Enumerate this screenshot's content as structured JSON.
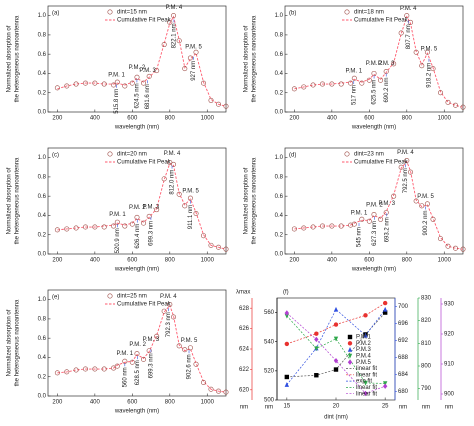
{
  "chart_data": [
    {
      "type": "line",
      "panel_label": "(a)",
      "xlabel": "wavelength (nm)",
      "ylabel": [
        "Normalized absorption of",
        "the heterogeneous nanoantenna"
      ],
      "x": [
        200,
        250,
        300,
        350,
        400,
        450,
        500,
        520,
        560,
        600,
        625,
        660,
        690,
        730,
        770,
        800,
        820,
        850,
        880,
        910,
        940,
        980,
        1020,
        1060,
        1100
      ],
      "series": [
        {
          "name": "dint=15 nm",
          "color": "#9c4a44",
          "values": [
            0.25,
            0.27,
            0.29,
            0.3,
            0.3,
            0.29,
            0.28,
            0.31,
            0.27,
            0.3,
            0.36,
            0.3,
            0.37,
            0.43,
            0.7,
            0.93,
            1.0,
            0.74,
            0.45,
            0.56,
            0.62,
            0.3,
            0.12,
            0.08,
            0.06
          ]
        },
        {
          "name": "Cumulative Fit Peak",
          "color": "#ff5a6e",
          "values": [
            0.24,
            0.27,
            0.29,
            0.3,
            0.3,
            0.29,
            0.29,
            0.3,
            0.28,
            0.31,
            0.35,
            0.31,
            0.36,
            0.44,
            0.71,
            0.92,
            0.99,
            0.75,
            0.46,
            0.55,
            0.61,
            0.31,
            0.13,
            0.08,
            0.06
          ]
        }
      ],
      "xlim": [
        150,
        1100
      ],
      "xticks": [
        200,
        400,
        600,
        800,
        1000
      ],
      "ylim": [
        0,
        1.1
      ],
      "yticks": [
        {
          "value": 0,
          "label": "0.0"
        },
        0.2,
        0.4,
        0.6,
        0.8,
        {
          "value": 1,
          "label": "1.0"
        }
      ],
      "peaks": [
        {
          "name": "P.M. 1",
          "x": 515.8,
          "label": "515.8 nm"
        },
        {
          "name": "P.M. 2",
          "x": 624.5,
          "label": "624.5 nm"
        },
        {
          "name": "P.M. 3",
          "x": 681.6,
          "label": "681.6 nm"
        },
        {
          "name": "P.M. 4",
          "x": 822.1,
          "label": "822.1 nm"
        },
        {
          "name": "P.M. 5",
          "x": 927,
          "label": "927 nm"
        }
      ]
    },
    {
      "type": "line",
      "panel_label": "(b)",
      "xlabel": "wavelength (nm)",
      "ylabel": [
        "Normalized absorption of",
        "the heterogeneous nanoantenna"
      ],
      "x": [
        200,
        250,
        300,
        350,
        400,
        450,
        500,
        520,
        560,
        600,
        625,
        660,
        690,
        730,
        770,
        800,
        820,
        850,
        880,
        910,
        940,
        980,
        1020,
        1060,
        1100
      ],
      "series": [
        {
          "name": "dint=18 nm",
          "color": "#9c4a44",
          "values": [
            0.24,
            0.26,
            0.28,
            0.29,
            0.29,
            0.29,
            0.3,
            0.35,
            0.3,
            0.33,
            0.4,
            0.33,
            0.42,
            0.5,
            0.82,
            1.0,
            0.93,
            0.62,
            0.48,
            0.62,
            0.45,
            0.2,
            0.1,
            0.07,
            0.05
          ]
        },
        {
          "name": "Cumulative Fit Peak",
          "color": "#ff5a6e",
          "values": [
            0.24,
            0.26,
            0.28,
            0.29,
            0.29,
            0.3,
            0.31,
            0.34,
            0.31,
            0.34,
            0.39,
            0.34,
            0.41,
            0.51,
            0.81,
            0.99,
            0.92,
            0.63,
            0.49,
            0.61,
            0.46,
            0.21,
            0.1,
            0.07,
            0.05
          ]
        }
      ],
      "xlim": [
        150,
        1100
      ],
      "xticks": [
        200,
        400,
        600,
        800,
        1000
      ],
      "ylim": [
        0,
        1.1
      ],
      "yticks": [
        {
          "value": 0,
          "label": "0.0"
        },
        0.2,
        0.4,
        0.6,
        0.8,
        {
          "value": 1,
          "label": "1.0"
        }
      ],
      "peaks": [
        {
          "name": "P.M. 1",
          "x": 517,
          "label": "517 nm"
        },
        {
          "name": "P.M. 2",
          "x": 625.5,
          "label": "625.5 nm"
        },
        {
          "name": "P.M. 3",
          "x": 690.2,
          "label": "690.2 nm"
        },
        {
          "name": "P.M. 4",
          "x": 807.7,
          "label": "807.7 nm"
        },
        {
          "name": "P.M. 5",
          "x": 918.2,
          "label": "918.2 nm"
        }
      ]
    },
    {
      "type": "line",
      "panel_label": "(c)",
      "xlabel": "wavelength (nm)",
      "ylabel": [
        "Normalized absorption of",
        "the heterogeneous nanoantenna"
      ],
      "x": [
        200,
        250,
        300,
        350,
        400,
        450,
        500,
        520,
        560,
        600,
        625,
        660,
        690,
        730,
        770,
        800,
        820,
        850,
        880,
        910,
        940,
        980,
        1020,
        1060,
        1100
      ],
      "series": [
        {
          "name": "dint=20 nm",
          "color": "#9c4a44",
          "values": [
            0.25,
            0.26,
            0.27,
            0.28,
            0.28,
            0.28,
            0.29,
            0.33,
            0.29,
            0.31,
            0.38,
            0.32,
            0.39,
            0.46,
            0.78,
            0.95,
            0.93,
            0.62,
            0.5,
            0.58,
            0.42,
            0.19,
            0.09,
            0.07,
            0.05
          ]
        },
        {
          "name": "Cumulative Fit Peak",
          "color": "#ff5a6e",
          "values": [
            0.25,
            0.26,
            0.27,
            0.28,
            0.28,
            0.29,
            0.3,
            0.32,
            0.3,
            0.32,
            0.37,
            0.33,
            0.38,
            0.47,
            0.77,
            0.94,
            0.92,
            0.63,
            0.51,
            0.57,
            0.43,
            0.2,
            0.09,
            0.07,
            0.05
          ]
        }
      ],
      "xlim": [
        150,
        1100
      ],
      "xticks": [
        200,
        400,
        600,
        800,
        1000
      ],
      "ylim": [
        0,
        1.1
      ],
      "yticks": [
        {
          "value": 0,
          "label": "0.0"
        },
        0.2,
        0.4,
        0.6,
        0.8,
        {
          "value": 1,
          "label": "1.0"
        }
      ],
      "peaks": [
        {
          "name": "P.M. 1",
          "x": 520.9,
          "label": "520.9 nm"
        },
        {
          "name": "P.M. 2",
          "x": 626.4,
          "label": "626.4 nm"
        },
        {
          "name": "P.M. 3",
          "x": 699.3,
          "label": "699.3 nm"
        },
        {
          "name": "P.M. 4",
          "x": 812.0,
          "label": "812.0 nm"
        },
        {
          "name": "P.M. 5",
          "x": 911.1,
          "label": "911.1 nm"
        }
      ]
    },
    {
      "type": "line",
      "panel_label": "(d)",
      "xlabel": "wavelength (nm)",
      "ylabel": [
        "Normalized absorption of",
        "the heterogeneous nanoantenna"
      ],
      "x": [
        200,
        250,
        300,
        350,
        400,
        450,
        500,
        520,
        560,
        600,
        625,
        660,
        690,
        730,
        770,
        800,
        820,
        850,
        880,
        910,
        940,
        980,
        1020,
        1060,
        1100
      ],
      "series": [
        {
          "name": "dint=23 nm",
          "color": "#9c4a44",
          "values": [
            0.26,
            0.27,
            0.28,
            0.29,
            0.29,
            0.29,
            0.3,
            0.31,
            0.36,
            0.34,
            0.41,
            0.36,
            0.43,
            0.6,
            0.9,
            0.97,
            0.85,
            0.55,
            0.5,
            0.52,
            0.36,
            0.16,
            0.08,
            0.06,
            0.05
          ]
        },
        {
          "name": "Cumulative Fit Peak",
          "color": "#ff5a6e",
          "values": [
            0.26,
            0.27,
            0.28,
            0.29,
            0.29,
            0.29,
            0.3,
            0.32,
            0.35,
            0.35,
            0.4,
            0.37,
            0.44,
            0.61,
            0.89,
            0.96,
            0.86,
            0.56,
            0.49,
            0.51,
            0.37,
            0.17,
            0.08,
            0.06,
            0.05
          ]
        }
      ],
      "xlim": [
        150,
        1100
      ],
      "xticks": [
        200,
        400,
        600,
        800,
        1000
      ],
      "ylim": [
        0,
        1.1
      ],
      "yticks": [
        {
          "value": 0,
          "label": "0.0"
        },
        0.2,
        0.4,
        0.6,
        0.8,
        {
          "value": 1,
          "label": "1.0"
        }
      ],
      "peaks": [
        {
          "name": "P.M. 1",
          "x": 545,
          "label": "545 nm"
        },
        {
          "name": "P.M. 2",
          "x": 627.3,
          "label": "627.3 nm"
        },
        {
          "name": "P.M. 3",
          "x": 693.2,
          "label": "693.2 nm"
        },
        {
          "name": "P.M. 4",
          "x": 792.5,
          "label": "792.5 nm"
        },
        {
          "name": "P.M. 5",
          "x": 900.2,
          "label": "900.2 nm"
        }
      ]
    },
    {
      "type": "line",
      "panel_label": "(e)",
      "xlabel": "wavelength (nm)",
      "ylabel": [
        "Normalized absorption of",
        "the heterogeneous nanoantenna"
      ],
      "x": [
        200,
        250,
        300,
        350,
        400,
        450,
        500,
        520,
        560,
        600,
        625,
        660,
        690,
        730,
        770,
        800,
        820,
        850,
        880,
        910,
        940,
        980,
        1020,
        1060,
        1100
      ],
      "series": [
        {
          "name": "dint=25 nm",
          "color": "#9c4a44",
          "values": [
            0.24,
            0.25,
            0.27,
            0.28,
            0.28,
            0.28,
            0.29,
            0.31,
            0.36,
            0.35,
            0.44,
            0.38,
            0.47,
            0.62,
            0.88,
            0.95,
            0.82,
            0.52,
            0.48,
            0.5,
            0.33,
            0.14,
            0.07,
            0.05,
            0.04
          ]
        },
        {
          "name": "Cumulative Fit Peak",
          "color": "#ff5a6e",
          "values": [
            0.24,
            0.25,
            0.27,
            0.28,
            0.28,
            0.28,
            0.29,
            0.32,
            0.35,
            0.36,
            0.43,
            0.39,
            0.46,
            0.63,
            0.87,
            0.94,
            0.83,
            0.53,
            0.47,
            0.49,
            0.34,
            0.15,
            0.07,
            0.05,
            0.04
          ]
        }
      ],
      "xlim": [
        150,
        1100
      ],
      "xticks": [
        200,
        400,
        600,
        800,
        1000
      ],
      "ylim": [
        0,
        1.1
      ],
      "yticks": [
        {
          "value": 0,
          "label": "0.0"
        },
        0.2,
        0.4,
        0.6,
        0.8,
        {
          "value": 1,
          "label": "1.0"
        }
      ],
      "peaks": [
        {
          "name": "P.M. 1",
          "x": 560,
          "label": "560 nm"
        },
        {
          "name": "P.M. 2",
          "x": 628.5,
          "label": "628.5 nm"
        },
        {
          "name": "P.M. 3",
          "x": 699.3,
          "label": "699.3 nm"
        },
        {
          "name": "P.M. 4",
          "x": 792.3,
          "label": "792.3 nm"
        },
        {
          "name": "P.M. 5",
          "x": 902.6,
          "label": "902.6 nm"
        }
      ]
    },
    {
      "type": "scatter",
      "panel_label": "(f)",
      "ylabel": "λmax",
      "xlabel": "dint (nm)",
      "x": [
        15,
        18,
        20,
        23,
        25
      ],
      "xlim": [
        14,
        26
      ],
      "xticks": [
        15,
        20,
        25
      ],
      "axes": [
        {
          "color": "#000000",
          "unit": "nm",
          "lim": [
            500,
            570
          ],
          "ticks": [
            500,
            520,
            540,
            560
          ]
        },
        {
          "color": "#e8312f",
          "unit": "nm",
          "lim": [
            619,
            629
          ],
          "ticks": [
            620,
            622,
            624,
            626,
            628
          ]
        },
        {
          "color": "#2f4fe0",
          "unit": "nm",
          "lim": [
            678,
            702
          ],
          "ticks": [
            680,
            684,
            688,
            692,
            696,
            700
          ]
        },
        {
          "color": "#2ea84a",
          "unit": "nm",
          "lim": [
            785,
            830
          ],
          "ticks": [
            790,
            800,
            810,
            820,
            830
          ]
        },
        {
          "color": "#b23fd1",
          "unit": "nm",
          "lim": [
            898,
            932
          ],
          "ticks": [
            900,
            910,
            920,
            930
          ]
        }
      ],
      "series": [
        {
          "name": "P.M.1",
          "axis": 0,
          "marker": "square",
          "color": "#000000",
          "values": [
            515.8,
            517,
            520.9,
            545,
            560
          ]
        },
        {
          "name": "P.M.2",
          "axis": 1,
          "marker": "circle",
          "color": "#e8312f",
          "values": [
            624.5,
            625.5,
            626.4,
            627.3,
            628.5
          ]
        },
        {
          "name": "P.M.3",
          "axis": 2,
          "marker": "triangle",
          "color": "#2f4fe0",
          "values": [
            681.6,
            690.2,
            699.3,
            693.2,
            699.3
          ]
        },
        {
          "name": "P.M.4",
          "axis": 3,
          "marker": "triangle-down",
          "color": "#2ea84a",
          "values": [
            822.1,
            807.7,
            812.0,
            792.5,
            792.3
          ]
        },
        {
          "name": "P.M.5",
          "axis": 4,
          "marker": "diamond",
          "color": "#b23fd1",
          "values": [
            927,
            918.2,
            911.1,
            900.2,
            902.6
          ]
        }
      ],
      "fits": [
        {
          "name": "linear fit",
          "series": 0,
          "color": "#555555"
        },
        {
          "name": "linear fit",
          "series": 1,
          "color": "#e8312f"
        },
        {
          "name": "exp fit",
          "series": 2,
          "color": "#2f4fe0"
        },
        {
          "name": "linear fit",
          "series": 3,
          "color": "#2ea84a"
        },
        {
          "name": "linear fit",
          "series": 4,
          "color": "#b23fd1"
        }
      ]
    }
  ]
}
